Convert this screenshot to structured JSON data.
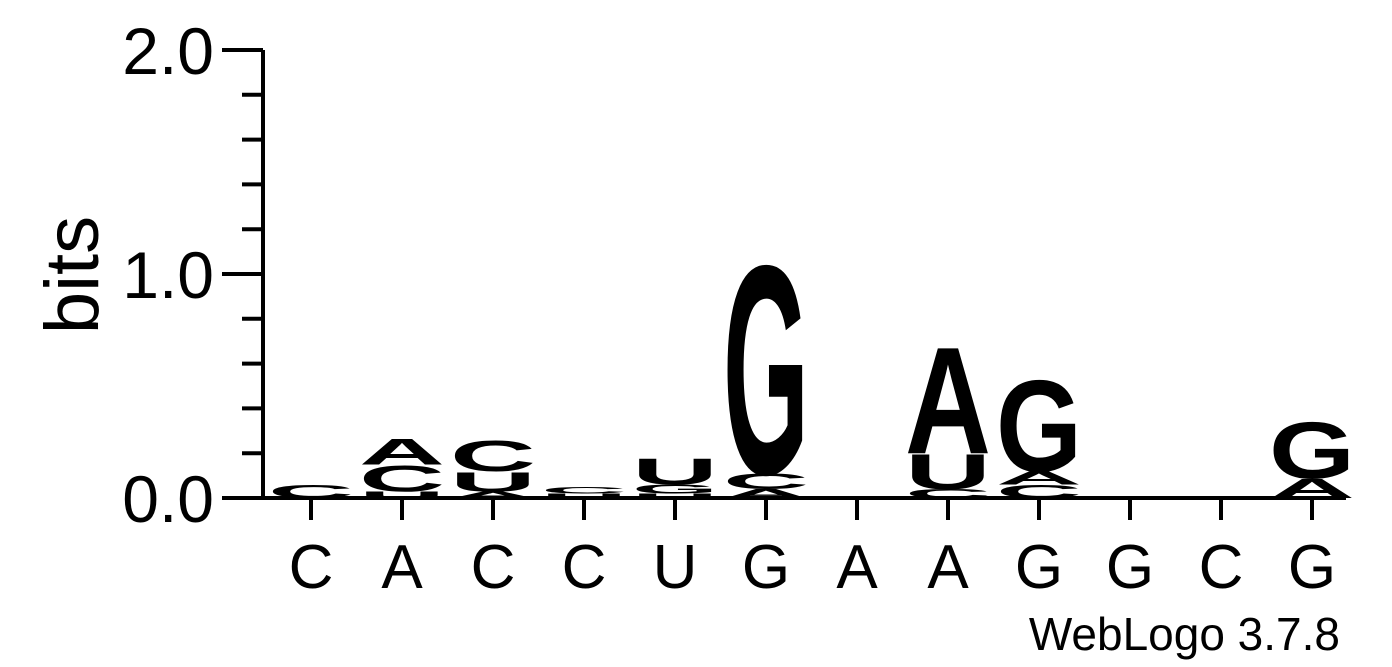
{
  "chart_data": {
    "type": "sequence-logo",
    "ylabel": "bits",
    "ylim": [
      0,
      2
    ],
    "yticks": [
      "0.0",
      "1.0",
      "2.0"
    ],
    "xticks": [
      "C",
      "A",
      "C",
      "C",
      "U",
      "G",
      "A",
      "A",
      "G",
      "G",
      "C",
      "G"
    ],
    "credit": "WebLogo 3.7.8",
    "colors": {
      "A": "#ff8c00",
      "U": "#ff8c00",
      "C": "#0000ff",
      "G": "#0000ff"
    },
    "stacks": [
      [
        {
          "letter": "C",
          "bits": 0.06
        }
      ],
      [
        {
          "letter": "U",
          "bits": 0.03
        },
        {
          "letter": "C",
          "bits": 0.12
        },
        {
          "letter": "A",
          "bits": 0.12
        }
      ],
      [
        {
          "letter": "A",
          "bits": 0.03
        },
        {
          "letter": "U",
          "bits": 0.09
        },
        {
          "letter": "C",
          "bits": 0.14
        }
      ],
      [
        {
          "letter": "U",
          "bits": 0.02
        },
        {
          "letter": "C",
          "bits": 0.03
        }
      ],
      [
        {
          "letter": "U",
          "bits": 0.02
        },
        {
          "letter": "G",
          "bits": 0.04
        },
        {
          "letter": "U",
          "bits": 0.12
        }
      ],
      [
        {
          "letter": "A",
          "bits": 0.04
        },
        {
          "letter": "C",
          "bits": 0.07
        },
        {
          "letter": "G",
          "bits": 0.96
        }
      ],
      [],
      [
        {
          "letter": "C",
          "bits": 0.04
        },
        {
          "letter": "U",
          "bits": 0.16
        },
        {
          "letter": "A",
          "bits": 0.49
        }
      ],
      [
        {
          "letter": "C",
          "bits": 0.06
        },
        {
          "letter": "A",
          "bits": 0.06
        },
        {
          "letter": "G",
          "bits": 0.42
        }
      ],
      [],
      [],
      [
        {
          "letter": "A",
          "bits": 0.09
        },
        {
          "letter": "G",
          "bits": 0.26
        }
      ]
    ]
  }
}
